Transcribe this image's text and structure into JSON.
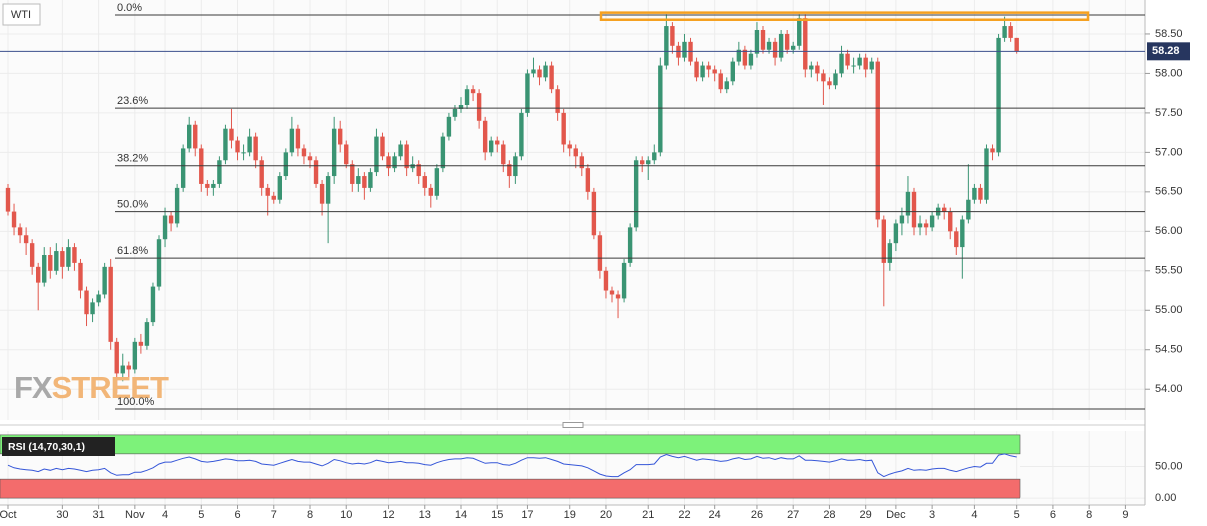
{
  "chart_data": {
    "type": "candlestick",
    "title": "WTI",
    "categories": [
      "Oct",
      null,
      null,
      null,
      null,
      null,
      null,
      null,
      null,
      "30",
      null,
      null,
      null,
      null,
      null,
      "31",
      null,
      null,
      null,
      null,
      null,
      "Nov",
      null,
      null,
      null,
      null,
      "4",
      null,
      null,
      null,
      null,
      null,
      "5",
      null,
      null,
      null,
      null,
      null,
      "6",
      null,
      null,
      null,
      null,
      null,
      "7",
      null,
      null,
      null,
      null,
      null,
      "8",
      null,
      null,
      null,
      null,
      null,
      "10",
      null,
      null,
      null,
      null,
      null,
      null,
      "12",
      null,
      null,
      null,
      null,
      null,
      "13",
      null,
      null,
      null,
      null,
      null,
      "14",
      null,
      null,
      null,
      null,
      null,
      "15",
      null,
      null,
      null,
      null,
      "17",
      null,
      null,
      null,
      null,
      null,
      null,
      "19",
      null,
      null,
      null,
      null,
      null,
      "20",
      null,
      null,
      null,
      null,
      null,
      null,
      "21",
      null,
      null,
      null,
      null,
      null,
      "22",
      null,
      null,
      null,
      null,
      "24",
      null,
      null,
      null,
      null,
      null,
      null,
      "26",
      null,
      null,
      null,
      null,
      null,
      "27",
      null,
      null,
      null,
      null,
      null,
      "28",
      null,
      null,
      null,
      null,
      null,
      "29",
      null,
      null,
      null,
      null,
      "Dec",
      null,
      null,
      null,
      null,
      null,
      "3",
      null,
      null,
      null,
      null,
      null,
      null,
      "4",
      null,
      null,
      null,
      null,
      null,
      null,
      "5",
      null,
      null,
      null,
      null,
      null,
      "6",
      null,
      null,
      null,
      null,
      null,
      "8",
      null,
      null,
      null,
      null,
      null,
      "9",
      null
    ],
    "open": [
      56.55,
      56.25,
      56.05,
      55.95,
      55.85,
      55.55,
      55.35,
      55.7,
      55.5,
      55.75,
      55.55,
      55.8,
      55.6,
      55.25,
      54.95,
      55.1,
      55.2,
      55.55,
      54.6,
      54.2,
      54.3,
      54.25,
      54.6,
      54.55,
      54.85,
      55.3,
      55.9,
      56.2,
      56.1,
      56.55,
      57.05,
      57.35,
      57.05,
      56.6,
      56.55,
      56.6,
      56.9,
      57.3,
      57.15,
      57.0,
      57.0,
      57.2,
      56.9,
      56.55,
      56.45,
      56.4,
      56.7,
      57.0,
      57.3,
      57.05,
      56.95,
      56.9,
      56.6,
      56.35,
      56.7,
      57.3,
      57.1,
      56.85,
      56.6,
      56.7,
      56.55,
      56.75,
      57.2,
      56.95,
      56.8,
      56.95,
      57.1,
      56.8,
      56.85,
      56.7,
      56.55,
      56.45,
      56.8,
      57.2,
      57.45,
      57.55,
      57.6,
      57.8,
      57.75,
      57.4,
      57.0,
      57.15,
      57.1,
      56.85,
      56.7,
      56.95,
      57.5,
      58.0,
      58.05,
      57.95,
      58.1,
      57.8,
      57.5,
      57.1,
      57.05,
      56.95,
      56.8,
      56.5,
      55.95,
      55.5,
      55.25,
      55.2,
      55.15,
      55.6,
      56.05,
      56.9,
      56.85,
      56.9,
      57.0,
      58.1,
      58.6,
      58.35,
      58.2,
      58.4,
      58.15,
      57.95,
      58.1,
      58.05,
      58.0,
      57.8,
      57.9,
      58.15,
      58.3,
      58.1,
      58.25,
      58.55,
      58.3,
      58.4,
      58.2,
      58.5,
      58.3,
      58.35,
      58.7,
      58.05,
      58.1,
      58.0,
      57.9,
      57.85,
      58.0,
      58.25,
      58.1,
      58.1,
      58.2,
      58.05,
      58.15,
      56.15,
      55.6,
      55.85,
      56.1,
      56.2,
      56.5,
      56.05,
      56.1,
      56.05,
      56.2,
      56.3,
      56.25,
      56.0,
      55.8,
      56.15,
      56.4,
      56.55,
      56.4,
      57.05,
      57.0,
      58.45,
      58.6,
      58.45,
      null,
      null,
      null,
      null,
      null,
      null,
      null,
      null,
      null,
      null,
      null,
      null,
      null,
      null,
      null,
      null,
      null,
      null,
      null
    ],
    "high": [
      56.6,
      56.35,
      56.1,
      56.05,
      55.9,
      55.6,
      55.8,
      55.8,
      55.85,
      55.8,
      55.9,
      55.85,
      55.65,
      55.3,
      55.15,
      55.25,
      55.6,
      55.65,
      54.65,
      54.45,
      54.35,
      54.65,
      54.7,
      54.9,
      55.35,
      55.95,
      56.3,
      56.25,
      56.6,
      57.1,
      57.45,
      57.4,
      57.1,
      56.65,
      56.65,
      56.95,
      57.35,
      57.55,
      57.2,
      57.1,
      57.3,
      57.25,
      56.95,
      56.6,
      56.5,
      56.75,
      57.05,
      57.45,
      57.35,
      57.1,
      57.0,
      56.95,
      56.65,
      56.75,
      57.45,
      57.4,
      57.15,
      56.9,
      56.8,
      56.75,
      56.8,
      57.3,
      57.25,
      57.0,
      57.0,
      57.15,
      57.15,
      56.95,
      56.9,
      56.75,
      56.6,
      56.85,
      57.25,
      57.5,
      57.6,
      57.7,
      57.85,
      57.85,
      57.8,
      57.45,
      57.2,
      57.2,
      57.15,
      56.9,
      57.0,
      57.55,
      58.05,
      58.2,
      58.1,
      58.15,
      58.15,
      57.85,
      57.55,
      57.15,
      57.1,
      57.0,
      56.85,
      56.55,
      56.0,
      55.55,
      55.3,
      55.25,
      55.65,
      56.1,
      56.95,
      56.95,
      56.95,
      57.1,
      58.2,
      58.75,
      58.65,
      58.4,
      58.5,
      58.45,
      58.2,
      58.15,
      58.15,
      58.1,
      58.05,
      57.95,
      58.2,
      58.4,
      58.35,
      58.3,
      58.65,
      58.6,
      58.45,
      58.45,
      58.55,
      58.55,
      58.4,
      58.75,
      58.75,
      58.15,
      58.15,
      58.05,
      57.95,
      58.05,
      58.35,
      58.3,
      58.2,
      58.25,
      58.25,
      58.2,
      58.2,
      56.2,
      55.9,
      56.15,
      56.3,
      56.7,
      56.55,
      56.2,
      56.15,
      56.25,
      56.35,
      56.35,
      56.3,
      56.05,
      56.2,
      56.85,
      56.6,
      56.6,
      57.1,
      57.1,
      58.5,
      58.72,
      58.65,
      58.45,
      null,
      null,
      null,
      null,
      null,
      null,
      null,
      null,
      null,
      null,
      null,
      null,
      null,
      null,
      null,
      null,
      null,
      null,
      null
    ],
    "low": [
      56.2,
      55.95,
      55.85,
      55.7,
      55.45,
      55.0,
      55.3,
      55.4,
      55.45,
      55.4,
      55.5,
      55.5,
      55.15,
      54.8,
      54.85,
      55.05,
      55.15,
      54.5,
      53.95,
      54.1,
      54.15,
      54.2,
      54.45,
      54.5,
      54.8,
      55.25,
      55.8,
      56.0,
      56.05,
      56.5,
      57.0,
      56.95,
      56.5,
      56.45,
      56.45,
      56.55,
      56.85,
      57.05,
      56.9,
      56.9,
      56.95,
      56.8,
      56.45,
      56.2,
      56.35,
      56.35,
      56.65,
      56.95,
      56.95,
      56.85,
      56.8,
      56.55,
      56.2,
      55.85,
      56.6,
      57.0,
      56.8,
      56.5,
      56.5,
      56.4,
      56.5,
      56.7,
      56.9,
      56.7,
      56.75,
      56.9,
      56.7,
      56.75,
      56.6,
      56.45,
      56.3,
      56.4,
      56.75,
      57.15,
      57.4,
      57.5,
      57.55,
      57.65,
      57.3,
      56.9,
      56.95,
      57.0,
      56.75,
      56.55,
      56.6,
      56.9,
      57.45,
      57.95,
      57.85,
      57.9,
      57.75,
      57.4,
      57.0,
      56.95,
      56.8,
      56.7,
      56.4,
      55.9,
      55.4,
      55.15,
      55.1,
      54.9,
      55.1,
      55.55,
      56.0,
      56.75,
      56.65,
      56.85,
      56.95,
      58.05,
      58.25,
      58.1,
      58.15,
      58.1,
      57.9,
      57.9,
      57.95,
      57.9,
      57.75,
      57.75,
      57.85,
      58.1,
      58.05,
      58.05,
      58.2,
      58.25,
      58.25,
      58.1,
      58.15,
      58.25,
      58.25,
      58.3,
      57.95,
      57.95,
      57.9,
      57.6,
      57.8,
      57.8,
      57.95,
      58.05,
      58.0,
      58.05,
      57.95,
      58.0,
      56.05,
      55.05,
      55.5,
      55.75,
      55.95,
      56.1,
      55.95,
      55.95,
      55.95,
      56.0,
      56.15,
      56.15,
      55.9,
      55.7,
      55.4,
      56.1,
      56.35,
      56.35,
      56.35,
      56.9,
      56.95,
      58.4,
      58.4,
      58.25,
      null,
      null,
      null,
      null,
      null,
      null,
      null,
      null,
      null,
      null,
      null,
      null,
      null,
      null,
      null,
      null,
      null,
      null,
      null
    ],
    "close": [
      56.25,
      56.05,
      55.95,
      55.85,
      55.55,
      55.35,
      55.7,
      55.5,
      55.75,
      55.55,
      55.8,
      55.6,
      55.25,
      54.95,
      55.1,
      55.2,
      55.55,
      54.6,
      54.2,
      54.3,
      54.25,
      54.6,
      54.55,
      54.85,
      55.3,
      55.9,
      56.2,
      56.1,
      56.55,
      57.05,
      57.35,
      57.05,
      56.6,
      56.55,
      56.6,
      56.9,
      57.3,
      57.15,
      57.0,
      57.0,
      57.2,
      56.9,
      56.55,
      56.45,
      56.4,
      56.7,
      57.0,
      57.3,
      57.05,
      56.95,
      56.9,
      56.6,
      56.35,
      56.7,
      57.3,
      57.1,
      56.85,
      56.6,
      56.7,
      56.55,
      56.75,
      57.2,
      56.95,
      56.8,
      56.95,
      57.1,
      56.8,
      56.85,
      56.7,
      56.55,
      56.45,
      56.8,
      57.2,
      57.45,
      57.55,
      57.6,
      57.8,
      57.75,
      57.4,
      57.0,
      57.15,
      57.1,
      56.85,
      56.7,
      56.95,
      57.5,
      58.0,
      58.05,
      57.95,
      58.1,
      57.8,
      57.5,
      57.1,
      57.05,
      56.95,
      56.8,
      56.5,
      55.95,
      55.5,
      55.25,
      55.2,
      55.15,
      55.6,
      56.05,
      56.9,
      56.85,
      56.9,
      57.0,
      58.1,
      58.6,
      58.35,
      58.2,
      58.4,
      58.15,
      57.95,
      58.1,
      58.05,
      58.0,
      57.8,
      57.9,
      58.15,
      58.3,
      58.1,
      58.25,
      58.55,
      58.3,
      58.4,
      58.2,
      58.5,
      58.3,
      58.35,
      58.7,
      58.05,
      58.1,
      58.0,
      57.9,
      57.85,
      58.0,
      58.25,
      58.1,
      58.1,
      58.2,
      58.05,
      58.15,
      56.15,
      55.6,
      55.85,
      56.1,
      56.2,
      56.5,
      56.05,
      56.1,
      56.05,
      56.2,
      56.3,
      56.25,
      56.0,
      55.8,
      56.15,
      56.4,
      56.55,
      56.4,
      57.05,
      57.0,
      58.45,
      58.6,
      58.45,
      58.28,
      null,
      null,
      null,
      null,
      null,
      null,
      null,
      null,
      null,
      null,
      null,
      null,
      null,
      null,
      null,
      null,
      null,
      null,
      null
    ],
    "up_color": "#3a9473",
    "down_color": "#e2574c",
    "ylim": [
      53.61,
      58.93
    ],
    "yticks": [
      {
        "value": 54.0,
        "label": "54.00"
      },
      {
        "value": 54.5,
        "label": "54.50"
      },
      {
        "value": 55.0,
        "label": "55.00"
      },
      {
        "value": 55.5,
        "label": "55.50"
      },
      {
        "value": 56.0,
        "label": "56.00"
      },
      {
        "value": 56.5,
        "label": "56.50"
      },
      {
        "value": 57.0,
        "label": "57.00"
      },
      {
        "value": 57.5,
        "label": "57.50"
      },
      {
        "value": 58.0,
        "label": "58.00"
      },
      {
        "value": 58.5,
        "label": "58.50"
      }
    ],
    "grid": true,
    "fib_levels": [
      {
        "label": "0.0%",
        "value": 58.74
      },
      {
        "label": "23.6%",
        "value": 57.56
      },
      {
        "label": "38.2%",
        "value": 56.83
      },
      {
        "label": "50.0%",
        "value": 56.25
      },
      {
        "label": "61.8%",
        "value": 55.66
      },
      {
        "label": "100.0%",
        "value": 53.75
      }
    ],
    "resistance_zone": [
      58.68,
      58.77
    ],
    "resistance_color": "#f5a01f",
    "watermark": [
      "FX",
      "STREET"
    ],
    "rsi": {
      "label": "RSI (14,70,30,1)",
      "color": "#3556d8",
      "ylim": [
        -3,
        103
      ],
      "yticks": [
        {
          "value": 0,
          "label": "0.00"
        },
        {
          "value": 50,
          "label": "50.00"
        }
      ],
      "overbought": [
        70,
        100
      ],
      "oversold": [
        0,
        30
      ],
      "overbought_color": "#7df27a",
      "oversold_color": "#f36c6c",
      "values": [
        52,
        48,
        46,
        45,
        44,
        42,
        46,
        44,
        47,
        45,
        47,
        46,
        44,
        42,
        44,
        45,
        47,
        40,
        36,
        37,
        37,
        41,
        41,
        44,
        48,
        54,
        57,
        57,
        60,
        63,
        65,
        62,
        58,
        57,
        58,
        60,
        62,
        61,
        59,
        59,
        60,
        58,
        54,
        53,
        52,
        55,
        58,
        61,
        58,
        57,
        57,
        54,
        51,
        55,
        61,
        59,
        56,
        54,
        55,
        54,
        56,
        60,
        58,
        56,
        57,
        58,
        56,
        56,
        55,
        53,
        52,
        56,
        59,
        61,
        62,
        62,
        64,
        63,
        59,
        55,
        56,
        56,
        53,
        52,
        55,
        60,
        64,
        64,
        63,
        64,
        61,
        58,
        54,
        53,
        52,
        51,
        48,
        43,
        38,
        35,
        34,
        34,
        40,
        45,
        53,
        53,
        53,
        54,
        65,
        69,
        66,
        64,
        66,
        63,
        60,
        62,
        61,
        60,
        58,
        59,
        62,
        64,
        61,
        62,
        66,
        63,
        64,
        61,
        64,
        62,
        62,
        67,
        60,
        60,
        59,
        58,
        57,
        59,
        62,
        60,
        60,
        61,
        59,
        60,
        40,
        34,
        38,
        41,
        43,
        47,
        44,
        45,
        44,
        46,
        47,
        47,
        44,
        42,
        45,
        48,
        50,
        49,
        55,
        55,
        68,
        70,
        67,
        65,
        null,
        null,
        null,
        null,
        null,
        null,
        null,
        null,
        null,
        null,
        null,
        null,
        null,
        null,
        null,
        null,
        null,
        null,
        null
      ]
    }
  }
}
